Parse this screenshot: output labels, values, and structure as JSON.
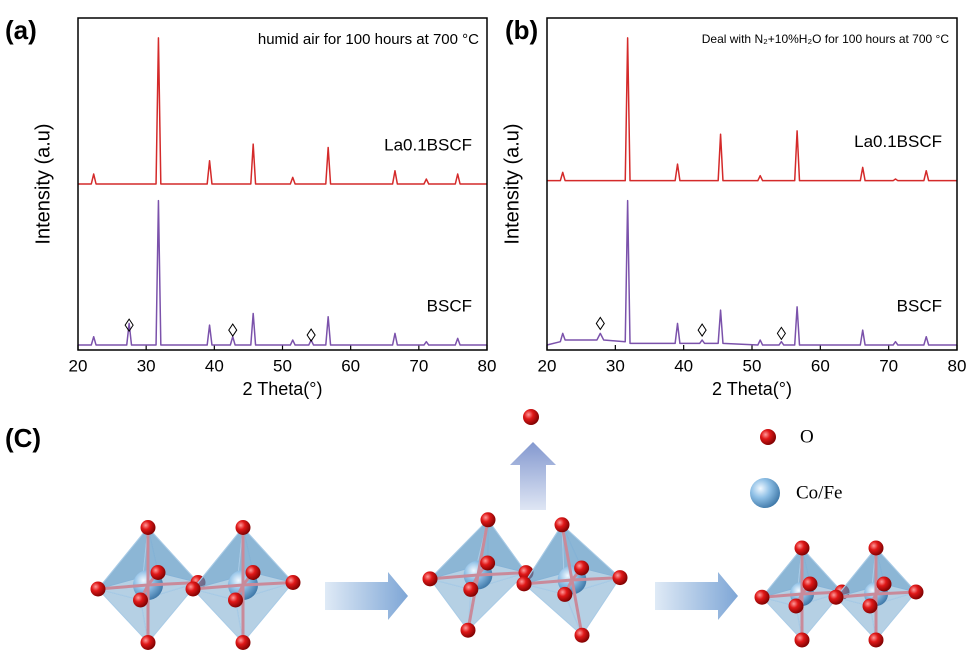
{
  "chart_data": [
    {
      "type": "line",
      "panel_label": "(a)",
      "annotation": "humid air for 100 hours at 700 °C",
      "xlabel": "2 Theta(°)",
      "ylabel": "Intensity (a.u)",
      "xlim": [
        20,
        80
      ],
      "xticks": [
        20,
        30,
        40,
        50,
        60,
        70,
        80
      ],
      "ylim": [
        0,
        100
      ],
      "x": [
        20,
        21.95,
        22.3,
        22.65,
        27.15,
        27.5,
        27.85,
        31.45,
        31.8,
        32.15,
        38.95,
        39.3,
        39.65,
        42.35,
        42.7,
        43.05,
        45.35,
        45.7,
        46.05,
        51.15,
        51.5,
        51.85,
        53.85,
        54.2,
        54.55,
        56.35,
        56.7,
        57.05,
        66.15,
        66.5,
        66.85,
        70.75,
        71.1,
        71.45,
        75.35,
        75.7,
        76.05,
        80
      ],
      "series": [
        {
          "name": "La0.1BSCF",
          "color": "#d42a2a",
          "values": [
            50,
            50,
            53,
            50,
            50,
            50,
            50,
            50,
            94,
            50,
            50,
            57,
            50,
            50,
            50,
            50,
            50,
            62,
            50,
            50,
            52,
            50,
            50,
            50,
            50,
            50,
            61,
            50,
            50,
            54,
            50,
            50,
            51.5,
            50,
            50,
            53,
            50,
            50
          ]
        },
        {
          "name": "BSCF",
          "color": "#7b52ab",
          "values": [
            1.5,
            1.5,
            4,
            1.5,
            1.5,
            8,
            1.5,
            1.5,
            45,
            1.5,
            1.5,
            7.5,
            1.5,
            1.5,
            4,
            1.5,
            1.5,
            11,
            1.5,
            1.5,
            3,
            1.5,
            1.5,
            3,
            1.5,
            1.5,
            10,
            1.5,
            1.5,
            5,
            1.5,
            1.5,
            2.5,
            1.5,
            1.5,
            3.5,
            1.5,
            1.5
          ]
        }
      ],
      "markers": {
        "x": [
          27.5,
          42.7,
          54.2
        ],
        "y": [
          7.5,
          6,
          4.5
        ]
      }
    },
    {
      "type": "line",
      "panel_label": "(b)",
      "annotation": "Deal with N₂+10%H₂O for 100 hours at 700 °C",
      "xlabel": "2 Theta(°)",
      "ylabel": "Intensity (a.u)",
      "xlim": [
        20,
        80
      ],
      "xticks": [
        20,
        30,
        40,
        50,
        60,
        70,
        80
      ],
      "ylim": [
        0,
        100
      ],
      "x": [
        20,
        21.95,
        22.3,
        22.65,
        27.3,
        27.8,
        28.3,
        31.45,
        31.8,
        32.15,
        38.75,
        39.1,
        39.45,
        42.35,
        42.7,
        43.05,
        45.05,
        45.4,
        45.75,
        50.85,
        51.2,
        51.55,
        53.95,
        54.3,
        54.65,
        56.25,
        56.6,
        56.95,
        65.85,
        66.2,
        66.55,
        70.65,
        71.0,
        71.35,
        75.15,
        75.5,
        75.85,
        80
      ],
      "series": [
        {
          "name": "La0.1BSCF",
          "color": "#d42a2a",
          "values": [
            51,
            51,
            53.5,
            51,
            51,
            51,
            51,
            51,
            94,
            51,
            51,
            56,
            51,
            51,
            51,
            51,
            51,
            65,
            51,
            51,
            52.5,
            51,
            51,
            51,
            51,
            51,
            66,
            51,
            51,
            55,
            51,
            51,
            51.5,
            51,
            51,
            54,
            51,
            51
          ]
        },
        {
          "name": "BSCF",
          "color": "#7b52ab",
          "values": [
            1.5,
            2.5,
            5,
            3,
            3,
            5,
            3,
            2.5,
            45,
            2,
            2,
            8,
            2,
            2,
            3,
            2,
            2,
            12,
            2,
            1.5,
            3,
            1.5,
            1.5,
            2.5,
            1.5,
            1.5,
            13,
            1.5,
            1.5,
            6,
            1.5,
            1.5,
            2.5,
            1.5,
            1.5,
            4,
            1.5,
            1.5
          ]
        }
      ],
      "markers": {
        "x": [
          27.8,
          42.7,
          54.3
        ],
        "y": [
          8,
          6,
          5
        ]
      }
    }
  ],
  "diagram": {
    "label": "(C)",
    "legend": [
      "O",
      "Co/Fe"
    ]
  }
}
